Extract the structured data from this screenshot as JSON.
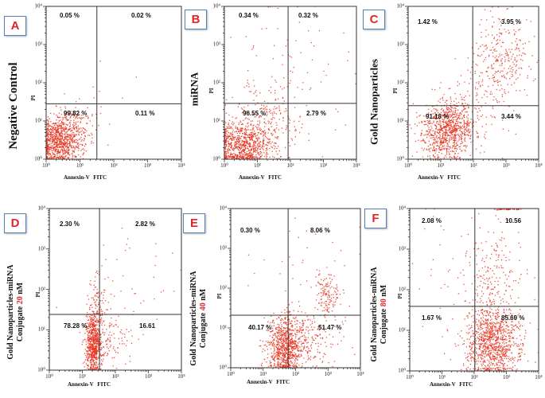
{
  "colors": {
    "points": "#e8321e",
    "letter": "#e0262a",
    "letter_border": "#4f81bd",
    "concentration": "#e0262a"
  },
  "chart_data": [
    {
      "panel_letter": "A",
      "type": "scatter",
      "title": "Negative Control",
      "xlabel": "Annexin-V FITC",
      "ylabel": "PI",
      "xlim": [
        1,
        10000
      ],
      "ylim": [
        1,
        10000
      ],
      "xticks": [
        "10⁰",
        "10¹",
        "10²",
        "10³",
        "10⁴"
      ],
      "yticks": [
        "10⁰",
        "10¹",
        "10²",
        "10³",
        "10⁴"
      ],
      "gate_log10": [
        1.5,
        1.45
      ],
      "quadrants": {
        "upper_left": "0.05 %",
        "upper_right": "0.02 %",
        "lower_left": "99.82 %",
        "lower_right": "0.11 %"
      },
      "populations": [
        {
          "log10_center": [
            0.4,
            0.5
          ],
          "log10_spread": [
            0.32,
            0.32
          ],
          "count": 850
        },
        {
          "log10_center": [
            0.9,
            0.9
          ],
          "log10_spread": [
            0.35,
            0.3
          ],
          "count": 110
        },
        {
          "log10_center": [
            1.8,
            1.3
          ],
          "log10_spread": [
            0.6,
            0.6
          ],
          "count": 8
        }
      ]
    },
    {
      "panel_letter": "B",
      "type": "scatter",
      "title": "miRNA",
      "xlabel": "Annexin-V FITC",
      "ylabel": "PI",
      "xlim": [
        1,
        10000
      ],
      "ylim": [
        1,
        10000
      ],
      "xticks": [
        "10⁰",
        "10¹",
        "10²",
        "10³",
        "10⁴"
      ],
      "yticks": [
        "10⁰",
        "10¹",
        "10²",
        "10³",
        "10⁴"
      ],
      "gate_log10": [
        1.93,
        1.46
      ],
      "quadrants": {
        "upper_left": "0.34 %",
        "upper_right": "0.32 %",
        "lower_left": "96.55 %",
        "lower_right": "2.79 %"
      },
      "populations": [
        {
          "log10_center": [
            0.55,
            0.35
          ],
          "log10_spread": [
            0.42,
            0.3
          ],
          "count": 800
        },
        {
          "log10_center": [
            1.2,
            1.0
          ],
          "log10_spread": [
            0.55,
            0.5
          ],
          "count": 230
        },
        {
          "log10_center": [
            2.0,
            2.0
          ],
          "log10_spread": [
            0.9,
            0.9
          ],
          "count": 80
        }
      ]
    },
    {
      "panel_letter": "C",
      "type": "scatter",
      "title": "Gold Nanoparticles",
      "xlabel": "Annexin-V FITC",
      "ylabel": "PI",
      "xlim": [
        1,
        10000
      ],
      "ylim": [
        1,
        10000
      ],
      "xticks": [
        "10⁰",
        "10¹",
        "10²",
        "10³",
        "10⁴"
      ],
      "yticks": [
        "10⁰",
        "10¹",
        "10²",
        "10³",
        "10⁴"
      ],
      "gate_log10": [
        1.98,
        1.4
      ],
      "quadrants": {
        "upper_left": "1.42 %",
        "upper_right": "3.95 %",
        "lower_left": "91.18 %",
        "lower_right": "3.44 %"
      },
      "populations": [
        {
          "log10_center": [
            1.15,
            0.7
          ],
          "log10_spread": [
            0.4,
            0.38
          ],
          "count": 760
        },
        {
          "log10_center": [
            1.6,
            1.1
          ],
          "log10_spread": [
            0.35,
            0.3
          ],
          "count": 140
        },
        {
          "log10_center": [
            2.95,
            2.7
          ],
          "log10_spread": [
            0.45,
            0.55
          ],
          "count": 240
        },
        {
          "log10_center": [
            2.3,
            1.8
          ],
          "log10_spread": [
            0.6,
            0.6
          ],
          "count": 110
        }
      ]
    },
    {
      "panel_letter": "D",
      "type": "scatter",
      "title": "Gold Nanoparticles-miRNA",
      "subtitle": "Conjugate",
      "concentration": "20",
      "unit": "nM",
      "xlabel": "Annexin-V FITC",
      "ylabel": "PI",
      "xlim": [
        1,
        10000
      ],
      "ylim": [
        1,
        10000
      ],
      "xticks": [
        "10⁰",
        "10¹",
        "10²",
        "10³",
        "10⁴"
      ],
      "yticks": [
        "10⁰",
        "10¹",
        "10²",
        "10³",
        "10⁴"
      ],
      "gate_log10": [
        1.52,
        1.38
      ],
      "quadrants": {
        "upper_left": "2.30 %",
        "upper_right": "2.82 %",
        "lower_left": "78.28 %",
        "lower_right": "16.61"
      },
      "populations": [
        {
          "log10_center": [
            1.35,
            0.65
          ],
          "log10_spread": [
            0.13,
            0.42
          ],
          "count": 700
        },
        {
          "log10_center": [
            1.45,
            1.6
          ],
          "log10_spread": [
            0.15,
            0.45
          ],
          "count": 85
        },
        {
          "log10_center": [
            1.9,
            0.85
          ],
          "log10_spread": [
            0.35,
            0.35
          ],
          "count": 95
        },
        {
          "log10_center": [
            2.3,
            2.3
          ],
          "log10_spread": [
            0.7,
            0.8
          ],
          "count": 38
        }
      ]
    },
    {
      "panel_letter": "E",
      "type": "scatter",
      "title": "Gold Nanoparticles-miRNA",
      "subtitle": "Conjugate",
      "concentration": "40",
      "unit": "nM",
      "xlabel": "Annexin-V FITC",
      "ylabel": "PI",
      "xlim": [
        1,
        10000
      ],
      "ylim": [
        1,
        10000
      ],
      "xticks": [
        "10⁰",
        "10¹",
        "10²",
        "10³",
        "10⁴"
      ],
      "yticks": [
        "10⁰",
        "10¹",
        "10²",
        "10³",
        "10⁴"
      ],
      "gate_log10": [
        1.77,
        1.32
      ],
      "quadrants": {
        "upper_left": "0.30 %",
        "upper_right": "8.06 %",
        "lower_left": "40.17 %",
        "lower_right": "51.47 %"
      },
      "populations": [
        {
          "log10_center": [
            1.7,
            0.55
          ],
          "log10_spread": [
            0.28,
            0.38
          ],
          "count": 820
        },
        {
          "log10_center": [
            2.5,
            0.8
          ],
          "log10_spread": [
            0.45,
            0.4
          ],
          "count": 170
        },
        {
          "log10_center": [
            2.95,
            1.85
          ],
          "log10_spread": [
            0.2,
            0.25
          ],
          "count": 125
        },
        {
          "log10_center": [
            2.3,
            2.0
          ],
          "log10_spread": [
            0.8,
            0.8
          ],
          "count": 55
        }
      ]
    },
    {
      "panel_letter": "F",
      "type": "scatter",
      "title": "Gold Nanoparticles-miRNA",
      "subtitle": "Conjugate",
      "concentration": "80",
      "unit": "nM",
      "xlabel": "Annexin-V FITC",
      "ylabel": "PI",
      "xlim": [
        1,
        10000
      ],
      "ylim": [
        1,
        10000
      ],
      "xticks": [
        "10⁰",
        "10¹",
        "10²",
        "10³",
        "10⁴"
      ],
      "yticks": [
        "10⁰",
        "10¹",
        "10²",
        "10³",
        "10⁴"
      ],
      "gate_log10": [
        2.02,
        1.59
      ],
      "quadrants": {
        "upper_left": "2.08 %",
        "upper_right": "10.56",
        "lower_left": "1.67 %",
        "lower_right": "85.69 %"
      },
      "populations": [
        {
          "log10_center": [
            2.55,
            0.7
          ],
          "log10_spread": [
            0.42,
            0.45
          ],
          "count": 1000
        },
        {
          "log10_center": [
            2.55,
            2.3
          ],
          "log10_spread": [
            0.45,
            0.65
          ],
          "count": 200
        },
        {
          "log10_center": [
            1.6,
            2.2
          ],
          "log10_spread": [
            0.9,
            1.0
          ],
          "count": 55
        },
        {
          "log10_center": [
            3.0,
            3.98
          ],
          "log10_spread": [
            0.25,
            0.01
          ],
          "count": 40
        }
      ]
    }
  ]
}
